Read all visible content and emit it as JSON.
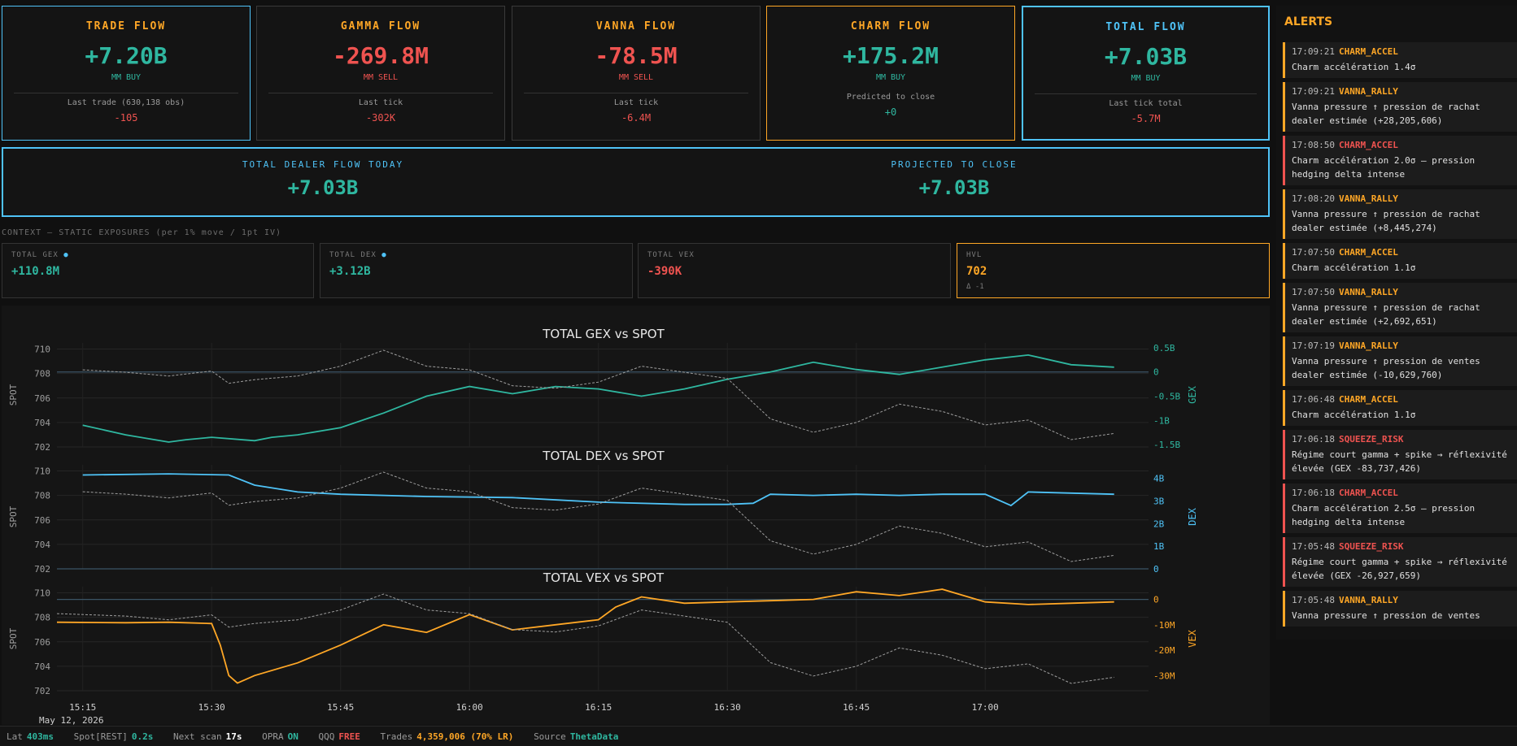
{
  "colors": {
    "green": "#2fb7a0",
    "red": "#ef5350",
    "orange": "#ffa726",
    "cyan": "#4fc3f7"
  },
  "flow_cards": [
    {
      "title": "TRADE FLOW",
      "value": "+7.20B",
      "side": "MM BUY",
      "note": "Last trade (630,138 obs)",
      "note_value": "-105"
    },
    {
      "title": "GAMMA FLOW",
      "value": "-269.8M",
      "side": "MM SELL",
      "note": "Last tick",
      "note_value": "-302K"
    },
    {
      "title": "VANNA FLOW",
      "value": "-78.5M",
      "side": "MM SELL",
      "note": "Last tick",
      "note_value": "-6.4M"
    },
    {
      "title": "CHARM FLOW",
      "value": "+175.2M",
      "side": "MM BUY",
      "note": "Predicted to close",
      "note_value": "+0"
    },
    {
      "title": "TOTAL FLOW",
      "value": "+7.03B",
      "side": "MM BUY",
      "note": "Last tick total",
      "note_value": "-5.7M"
    }
  ],
  "totals": {
    "dealer_label": "TOTAL DEALER FLOW TODAY",
    "dealer_value": "+7.03B",
    "projected_label": "PROJECTED TO CLOSE",
    "projected_value": "+7.03B"
  },
  "context": {
    "label": "CONTEXT — STATIC EXPOSURES (per 1% move / 1pt IV)",
    "gex_label": "TOTAL GEX",
    "gex_value": "+110.8M",
    "dex_label": "TOTAL DEX",
    "dex_value": "+3.12B",
    "vex_label": "TOTAL VEX",
    "vex_value": "-390K",
    "hvl_label": "HVL",
    "hvl_value": "702",
    "hvl_delta": "Δ -1"
  },
  "chart_data": [
    {
      "type": "line",
      "title": "TOTAL GEX  vs  SPOT",
      "ylabel_left": "SPOT",
      "ylabel_right": "GEX",
      "left_ticks": [
        "710",
        "708",
        "706",
        "704",
        "702"
      ],
      "right_ticks": [
        "0.5B",
        "0",
        "-0.5B",
        "-1B",
        "-1.5B"
      ],
      "ylim_spot": [
        702,
        710.5
      ],
      "ylim_right": [
        -1.55,
        0.6
      ],
      "series": [
        {
          "name": "GEX",
          "color": "#2fb7a0",
          "style": "solid",
          "x": [
            0,
            5,
            10,
            12,
            15,
            20,
            22,
            25,
            30,
            35,
            40,
            45,
            50,
            55,
            60,
            65,
            70,
            75,
            80,
            85,
            90,
            95,
            100,
            105,
            110,
            115,
            120
          ],
          "values": [
            -1.1,
            -1.3,
            -1.45,
            -1.4,
            -1.35,
            -1.42,
            -1.35,
            -1.3,
            -1.15,
            -0.85,
            -0.5,
            -0.3,
            -0.45,
            -0.3,
            -0.35,
            -0.5,
            -0.35,
            -0.15,
            0.0,
            0.2,
            0.05,
            -0.05,
            0.1,
            0.25,
            0.35,
            0.15,
            0.1
          ]
        },
        {
          "name": "SPOT",
          "color": "#9e9e9e",
          "style": "dashed",
          "x": [
            0,
            5,
            10,
            15,
            17,
            20,
            25,
            30,
            35,
            40,
            45,
            50,
            55,
            60,
            65,
            70,
            75,
            80,
            85,
            90,
            95,
            100,
            105,
            110,
            115,
            120
          ],
          "values": [
            708.3,
            708.1,
            707.8,
            708.2,
            707.2,
            707.5,
            707.8,
            708.6,
            709.9,
            708.6,
            708.3,
            707.0,
            706.8,
            707.3,
            708.6,
            708.1,
            707.6,
            704.3,
            703.2,
            704.0,
            705.5,
            704.9,
            703.8,
            704.2,
            702.6,
            703.1
          ]
        }
      ]
    },
    {
      "type": "line",
      "title": "TOTAL DEX  vs  SPOT",
      "ylabel_left": "SPOT",
      "ylabel_right": "DEX",
      "left_ticks": [
        "710",
        "708",
        "706",
        "704",
        "702"
      ],
      "right_ticks": [
        "4B",
        "3B",
        "2B",
        "1B",
        "0"
      ],
      "ylim_spot": [
        702,
        710.5
      ],
      "ylim_right": [
        0,
        4.6
      ],
      "series": [
        {
          "name": "DEX",
          "color": "#4fc3f7",
          "style": "solid",
          "x": [
            0,
            10,
            17,
            20,
            25,
            30,
            40,
            50,
            60,
            70,
            75,
            78,
            80,
            85,
            90,
            95,
            100,
            105,
            108,
            110,
            115,
            120
          ],
          "values": [
            4.15,
            4.2,
            4.15,
            3.7,
            3.4,
            3.3,
            3.2,
            3.15,
            2.95,
            2.85,
            2.85,
            2.9,
            3.3,
            3.25,
            3.3,
            3.25,
            3.3,
            3.3,
            2.8,
            3.4,
            3.35,
            3.3
          ]
        },
        {
          "name": "SPOT",
          "color": "#9e9e9e",
          "style": "dashed",
          "x": [
            0,
            5,
            10,
            15,
            17,
            20,
            25,
            30,
            35,
            40,
            45,
            50,
            55,
            60,
            65,
            70,
            75,
            80,
            85,
            90,
            95,
            100,
            105,
            110,
            115,
            120
          ],
          "values": [
            708.3,
            708.1,
            707.8,
            708.2,
            707.2,
            707.5,
            707.8,
            708.6,
            709.9,
            708.6,
            708.3,
            707.0,
            706.8,
            707.3,
            708.6,
            708.1,
            707.6,
            704.3,
            703.2,
            704.0,
            705.5,
            704.9,
            703.8,
            704.2,
            702.6,
            703.1
          ]
        }
      ]
    },
    {
      "type": "line",
      "title": "TOTAL VEX  vs  SPOT",
      "ylabel_left": "SPOT",
      "ylabel_right": "VEX",
      "left_ticks": [
        "710",
        "708",
        "706",
        "704",
        "702"
      ],
      "right_ticks": [
        "0",
        "-10M",
        "-20M",
        "-30M"
      ],
      "ylim_spot": [
        702,
        710.5
      ],
      "ylim_right": [
        -36,
        5
      ],
      "x_ticks": [
        "15:15",
        "15:30",
        "15:45",
        "16:00",
        "16:15",
        "16:30",
        "16:45",
        "17:00"
      ],
      "x_tick_positions": [
        0,
        15,
        30,
        45,
        60,
        75,
        90,
        105
      ],
      "date_label": "May 12, 2026",
      "series": [
        {
          "name": "VEX",
          "color": "#ffa726",
          "style": "solid",
          "x": [
            -3,
            5,
            10,
            15,
            16,
            17,
            18,
            20,
            25,
            30,
            35,
            40,
            45,
            50,
            55,
            60,
            62,
            65,
            70,
            75,
            80,
            85,
            90,
            95,
            100,
            105,
            110,
            115,
            120
          ],
          "values": [
            -9,
            -9.2,
            -9,
            -9.5,
            -18,
            -30,
            -33,
            -30,
            -25,
            -18,
            -10,
            -13,
            -6,
            -12,
            -10,
            -8,
            -3,
            1,
            -1.5,
            -1,
            -0.5,
            0,
            3,
            1.5,
            4,
            -1,
            -2,
            -1.5,
            -1
          ]
        },
        {
          "name": "SPOT",
          "color": "#9e9e9e",
          "style": "dashed",
          "x": [
            -3,
            5,
            10,
            15,
            17,
            20,
            25,
            30,
            35,
            40,
            45,
            50,
            55,
            60,
            65,
            70,
            75,
            80,
            85,
            90,
            95,
            100,
            105,
            110,
            115,
            120
          ],
          "values": [
            708.3,
            708.1,
            707.8,
            708.2,
            707.2,
            707.5,
            707.8,
            708.6,
            709.9,
            708.6,
            708.3,
            707.0,
            706.8,
            707.3,
            708.6,
            708.1,
            707.6,
            704.3,
            703.2,
            704.0,
            705.5,
            704.9,
            703.8,
            704.2,
            702.6,
            703.1
          ]
        }
      ]
    }
  ],
  "alerts": {
    "title": "ALERTS",
    "items": [
      {
        "time": "17:09:21",
        "type": "CHARM_ACCEL",
        "level": "orange",
        "message": "Charm accélération 1.4σ"
      },
      {
        "time": "17:09:21",
        "type": "VANNA_RALLY",
        "level": "orange",
        "message": "Vanna pressure ↑ pression de rachat dealer estimée (+28,205,606)"
      },
      {
        "time": "17:08:50",
        "type": "CHARM_ACCEL",
        "level": "red",
        "message": "Charm accélération 2.0σ — pression hedging delta intense"
      },
      {
        "time": "17:08:20",
        "type": "VANNA_RALLY",
        "level": "orange",
        "message": "Vanna pressure ↑ pression de rachat dealer estimée (+8,445,274)"
      },
      {
        "time": "17:07:50",
        "type": "CHARM_ACCEL",
        "level": "orange",
        "message": "Charm accélération 1.1σ"
      },
      {
        "time": "17:07:50",
        "type": "VANNA_RALLY",
        "level": "orange",
        "message": "Vanna pressure ↑ pression de rachat dealer estimée (+2,692,651)"
      },
      {
        "time": "17:07:19",
        "type": "VANNA_RALLY",
        "level": "orange",
        "message": "Vanna pressure ↑ pression de ventes dealer estimée (-10,629,760)"
      },
      {
        "time": "17:06:48",
        "type": "CHARM_ACCEL",
        "level": "orange",
        "message": "Charm accélération 1.1σ"
      },
      {
        "time": "17:06:18",
        "type": "SQUEEZE_RISK",
        "level": "red",
        "message": "Régime court gamma + spike → réflexivité élevée (GEX -83,737,426)"
      },
      {
        "time": "17:06:18",
        "type": "CHARM_ACCEL",
        "level": "red",
        "message": "Charm accélération 2.5σ — pression hedging delta intense"
      },
      {
        "time": "17:05:48",
        "type": "SQUEEZE_RISK",
        "level": "red",
        "message": "Régime court gamma + spike → réflexivité élevée (GEX -26,927,659)"
      },
      {
        "time": "17:05:48",
        "type": "VANNA_RALLY",
        "level": "orange",
        "message": "Vanna pressure ↑ pression de ventes"
      }
    ]
  },
  "status": {
    "lat_label": "Lat",
    "lat_value": "403ms",
    "spot_label": "Spot[REST]",
    "spot_value": "0.2s",
    "scan_label": "Next scan",
    "scan_value": "17s",
    "opra_label": "OPRA",
    "opra_value": "ON",
    "qqq_label": "QQQ",
    "qqq_value": "FREE",
    "trades_label": "Trades",
    "trades_value": "4,359,006 (70% LR)",
    "source_label": "Source",
    "source_value": "ThetaData"
  }
}
